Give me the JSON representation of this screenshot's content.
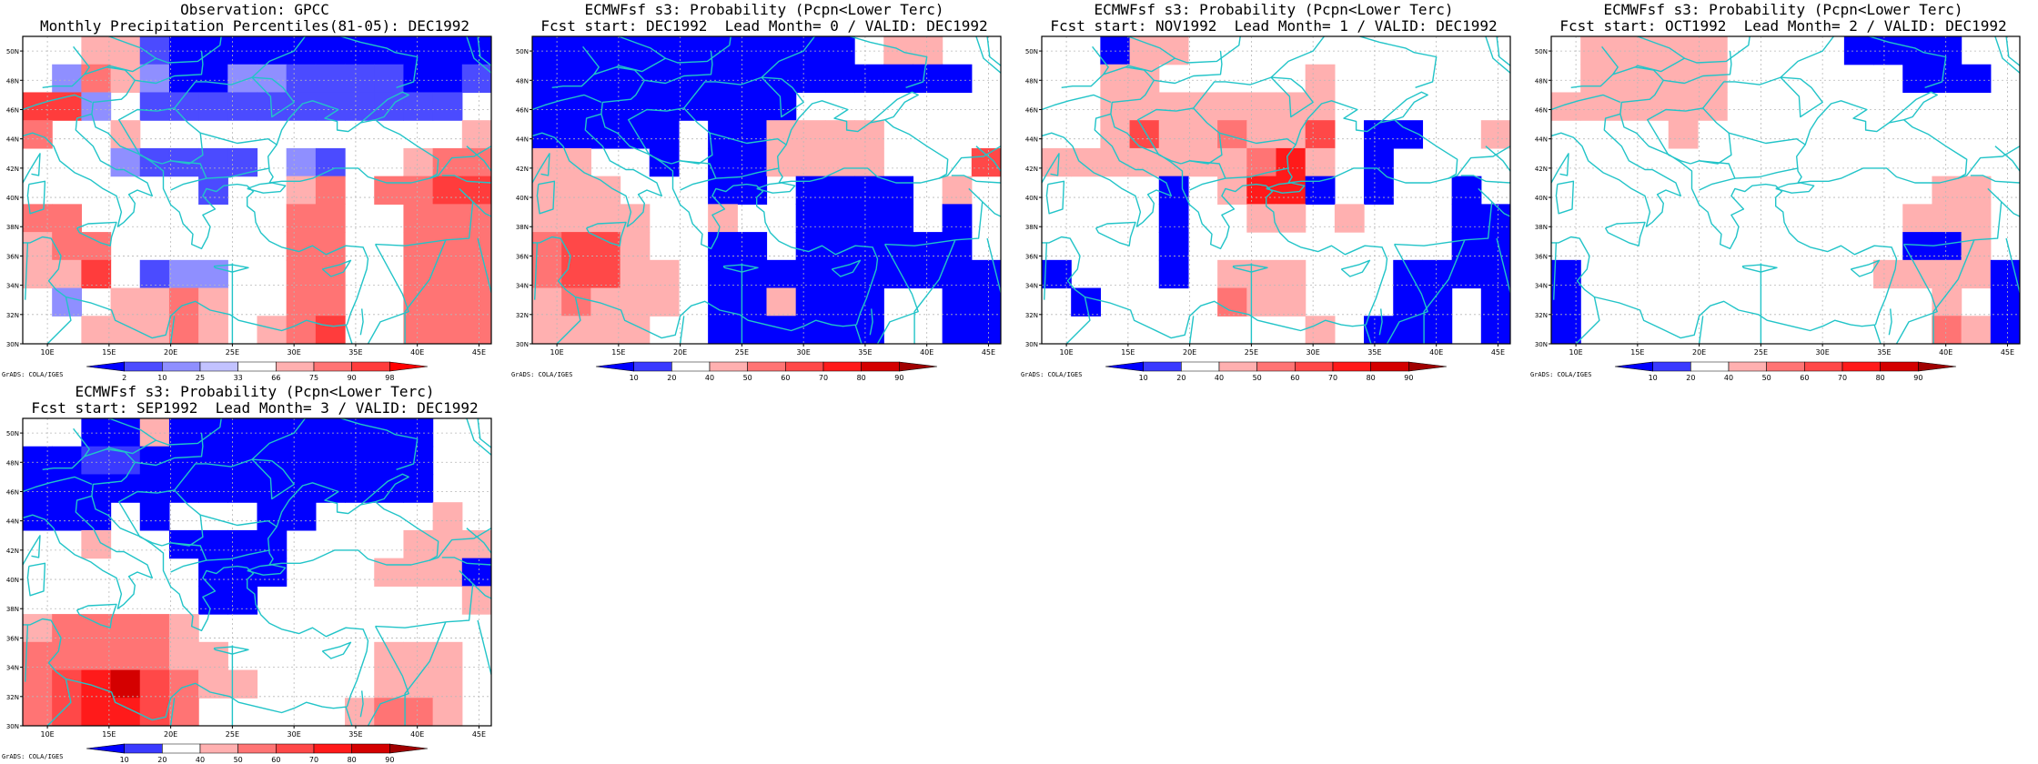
{
  "page": {
    "background": "#ffffff"
  },
  "colors": {
    "coast": "#22c4c8",
    "border": "#000000",
    "grid": "#b8b8b8",
    "obs_scale": [
      "#0000ff",
      "#4b4bff",
      "#8f8fff",
      "#c2c2ff",
      "#ffffff",
      "#ffb0b0",
      "#ff7474",
      "#ff3c3c",
      "#ff0000"
    ],
    "prob_scale": [
      "#0000ff",
      "#3a3aff",
      "#ffffff",
      "#ffb0b0",
      "#ff7474",
      "#ff4848",
      "#ff1a1a",
      "#d40000",
      "#a00000"
    ]
  },
  "map": {
    "lon_labels": [
      "10E",
      "15E",
      "20E",
      "25E",
      "30E",
      "35E",
      "40E",
      "45E"
    ],
    "lat_labels": [
      "50N",
      "48N",
      "46N",
      "44N",
      "42N",
      "40N",
      "38N",
      "36N",
      "34N",
      "32N",
      "30N"
    ]
  },
  "credit": "GrADS: COLA/IGES",
  "panels": [
    {
      "id": "obs",
      "title1": "Observation: GPCC",
      "title2": "Monthly Precipitation Percentiles(81-05): DEC1992",
      "scale": "obs",
      "colorbar_labels": [
        "2",
        "10",
        "25",
        "33",
        "66",
        "75",
        "90",
        "98"
      ],
      "grid": [
        [
          4,
          4,
          5,
          5,
          1,
          0,
          0,
          0,
          0,
          0,
          0,
          0,
          0,
          0,
          0,
          0
        ],
        [
          4,
          2,
          6,
          5,
          2,
          0,
          0,
          2,
          2,
          1,
          1,
          1,
          1,
          0,
          0,
          1
        ],
        [
          7,
          7,
          2,
          4,
          1,
          1,
          1,
          1,
          1,
          1,
          1,
          1,
          1,
          1,
          1,
          4
        ],
        [
          6,
          4,
          4,
          5,
          4,
          4,
          4,
          4,
          4,
          4,
          4,
          4,
          4,
          4,
          4,
          5
        ],
        [
          4,
          4,
          4,
          2,
          1,
          1,
          1,
          1,
          4,
          2,
          1,
          4,
          4,
          5,
          6,
          6
        ],
        [
          4,
          4,
          4,
          4,
          4,
          4,
          1,
          4,
          4,
          5,
          6,
          4,
          6,
          6,
          7,
          7
        ],
        [
          6,
          6,
          4,
          4,
          4,
          4,
          4,
          4,
          4,
          6,
          6,
          4,
          4,
          6,
          6,
          6
        ],
        [
          5,
          6,
          6,
          4,
          4,
          4,
          4,
          4,
          4,
          6,
          6,
          4,
          4,
          6,
          6,
          6
        ],
        [
          5,
          5,
          7,
          4,
          1,
          2,
          2,
          4,
          4,
          6,
          6,
          4,
          4,
          6,
          6,
          6
        ],
        [
          4,
          2,
          4,
          5,
          5,
          6,
          5,
          4,
          4,
          6,
          6,
          4,
          4,
          6,
          6,
          6
        ],
        [
          4,
          4,
          5,
          5,
          5,
          6,
          5,
          4,
          5,
          6,
          7,
          4,
          4,
          6,
          6,
          6
        ]
      ]
    },
    {
      "id": "fc0",
      "title1": "ECMWFsf s3: Probability (Pcpn<Lower Terc)",
      "title2": "Fcst start: DEC1992  Lead Month= 0 / VALID: DEC1992",
      "scale": "prob",
      "colorbar_labels": [
        "10",
        "20",
        "40",
        "50",
        "60",
        "70",
        "80",
        "90"
      ],
      "grid": [
        [
          0,
          0,
          0,
          0,
          0,
          0,
          0,
          0,
          0,
          0,
          0,
          2,
          3,
          3,
          2,
          2
        ],
        [
          0,
          0,
          0,
          0,
          0,
          0,
          0,
          0,
          0,
          0,
          0,
          0,
          0,
          0,
          0,
          2
        ],
        [
          0,
          0,
          0,
          0,
          0,
          0,
          0,
          0,
          0,
          2,
          2,
          2,
          2,
          2,
          2,
          2
        ],
        [
          0,
          0,
          0,
          0,
          0,
          2,
          0,
          0,
          3,
          3,
          3,
          3,
          2,
          2,
          2,
          2
        ],
        [
          3,
          3,
          2,
          2,
          0,
          2,
          0,
          0,
          3,
          3,
          3,
          3,
          2,
          2,
          2,
          5
        ],
        [
          3,
          3,
          3,
          2,
          2,
          2,
          0,
          0,
          2,
          0,
          0,
          0,
          0,
          2,
          3,
          2
        ],
        [
          3,
          3,
          3,
          3,
          2,
          2,
          3,
          2,
          2,
          0,
          0,
          0,
          0,
          2,
          0,
          2
        ],
        [
          4,
          5,
          5,
          3,
          2,
          2,
          0,
          0,
          2,
          0,
          0,
          0,
          0,
          0,
          0,
          2
        ],
        [
          4,
          5,
          5,
          3,
          3,
          2,
          0,
          0,
          0,
          0,
          0,
          0,
          0,
          0,
          0,
          0
        ],
        [
          3,
          4,
          3,
          3,
          3,
          2,
          0,
          0,
          3,
          0,
          0,
          0,
          2,
          2,
          0,
          0
        ],
        [
          3,
          3,
          3,
          3,
          2,
          2,
          0,
          0,
          0,
          0,
          0,
          0,
          2,
          2,
          0,
          0
        ]
      ]
    },
    {
      "id": "fc1",
      "title1": "ECMWFsf s3: Probability (Pcpn<Lower Terc)",
      "title2": "Fcst start: NOV1992  Lead Month= 1 / VALID: DEC1992",
      "scale": "prob",
      "colorbar_labels": [
        "10",
        "20",
        "40",
        "50",
        "60",
        "70",
        "80",
        "90"
      ],
      "grid": [
        [
          2,
          2,
          0,
          3,
          3,
          2,
          2,
          2,
          2,
          2,
          2,
          2,
          2,
          2,
          2,
          2
        ],
        [
          2,
          2,
          3,
          3,
          2,
          2,
          2,
          2,
          2,
          3,
          2,
          2,
          2,
          2,
          2,
          2
        ],
        [
          2,
          2,
          3,
          3,
          3,
          3,
          3,
          3,
          3,
          3,
          2,
          2,
          2,
          2,
          2,
          2
        ],
        [
          2,
          2,
          3,
          5,
          3,
          3,
          4,
          3,
          3,
          5,
          2,
          0,
          0,
          2,
          2,
          3
        ],
        [
          3,
          3,
          3,
          3,
          3,
          3,
          3,
          4,
          6,
          3,
          2,
          0,
          2,
          2,
          2,
          2
        ],
        [
          2,
          2,
          2,
          2,
          0,
          2,
          3,
          6,
          6,
          0,
          2,
          0,
          2,
          2,
          0,
          2
        ],
        [
          2,
          2,
          2,
          2,
          0,
          2,
          2,
          3,
          3,
          2,
          3,
          2,
          2,
          2,
          0,
          0
        ],
        [
          2,
          2,
          2,
          2,
          0,
          2,
          2,
          2,
          2,
          2,
          2,
          2,
          2,
          2,
          0,
          0
        ],
        [
          0,
          2,
          2,
          2,
          0,
          2,
          3,
          3,
          3,
          2,
          2,
          2,
          0,
          0,
          0,
          0
        ],
        [
          2,
          0,
          2,
          2,
          2,
          2,
          4,
          3,
          3,
          2,
          2,
          2,
          0,
          0,
          2,
          0
        ],
        [
          2,
          2,
          2,
          2,
          2,
          2,
          2,
          2,
          2,
          3,
          2,
          0,
          0,
          0,
          2,
          0
        ]
      ]
    },
    {
      "id": "fc2",
      "title1": "ECMWFsf s3: Probability (Pcpn<Lower Terc)",
      "title2": "Fcst start: OCT1992  Lead Month= 2 / VALID: DEC1992",
      "scale": "prob",
      "colorbar_labels": [
        "10",
        "20",
        "40",
        "50",
        "60",
        "70",
        "80",
        "90"
      ],
      "grid": [
        [
          2,
          3,
          3,
          3,
          3,
          3,
          2,
          2,
          2,
          2,
          0,
          0,
          0,
          0,
          2,
          2
        ],
        [
          2,
          3,
          3,
          3,
          3,
          3,
          2,
          2,
          2,
          2,
          2,
          2,
          0,
          0,
          0,
          2
        ],
        [
          3,
          3,
          3,
          3,
          3,
          3,
          2,
          2,
          2,
          2,
          2,
          2,
          2,
          2,
          2,
          2
        ],
        [
          2,
          2,
          2,
          2,
          3,
          2,
          2,
          2,
          2,
          2,
          2,
          2,
          2,
          2,
          2,
          2
        ],
        [
          2,
          2,
          2,
          2,
          2,
          2,
          2,
          2,
          2,
          2,
          2,
          2,
          2,
          2,
          2,
          2
        ],
        [
          2,
          2,
          2,
          2,
          2,
          2,
          2,
          2,
          2,
          2,
          2,
          2,
          2,
          3,
          3,
          2
        ],
        [
          2,
          2,
          2,
          2,
          2,
          2,
          2,
          2,
          2,
          2,
          2,
          2,
          3,
          3,
          3,
          2
        ],
        [
          2,
          2,
          2,
          2,
          2,
          2,
          2,
          2,
          2,
          2,
          2,
          2,
          0,
          0,
          3,
          2
        ],
        [
          0,
          2,
          2,
          2,
          2,
          2,
          2,
          2,
          2,
          2,
          2,
          3,
          3,
          3,
          3,
          0
        ],
        [
          0,
          2,
          2,
          2,
          2,
          2,
          2,
          2,
          2,
          2,
          2,
          2,
          2,
          3,
          2,
          0
        ],
        [
          0,
          2,
          2,
          2,
          2,
          2,
          2,
          2,
          2,
          2,
          2,
          2,
          2,
          4,
          3,
          0
        ]
      ]
    },
    {
      "id": "fc3",
      "title1": "ECMWFsf s3: Probability (Pcpn<Lower Terc)",
      "title2": "Fcst start: SEP1992  Lead Month= 3 / VALID: DEC1992",
      "scale": "prob",
      "colorbar_labels": [
        "10",
        "20",
        "40",
        "50",
        "60",
        "70",
        "80",
        "90"
      ],
      "grid": [
        [
          2,
          2,
          0,
          0,
          3,
          0,
          0,
          0,
          0,
          0,
          0,
          0,
          0,
          0,
          2,
          2
        ],
        [
          0,
          0,
          1,
          1,
          0,
          0,
          0,
          0,
          0,
          0,
          0,
          0,
          0,
          0,
          2,
          2
        ],
        [
          0,
          0,
          0,
          0,
          0,
          0,
          0,
          0,
          0,
          0,
          0,
          0,
          0,
          0,
          2,
          2
        ],
        [
          0,
          0,
          0,
          2,
          0,
          2,
          2,
          2,
          0,
          0,
          2,
          2,
          2,
          2,
          3,
          2
        ],
        [
          2,
          2,
          3,
          2,
          2,
          0,
          0,
          0,
          0,
          2,
          2,
          2,
          2,
          3,
          3,
          3
        ],
        [
          2,
          2,
          2,
          2,
          2,
          2,
          0,
          0,
          0,
          2,
          2,
          2,
          3,
          3,
          3,
          0
        ],
        [
          2,
          2,
          2,
          2,
          2,
          2,
          0,
          0,
          2,
          2,
          2,
          2,
          2,
          2,
          2,
          3
        ],
        [
          3,
          4,
          4,
          4,
          4,
          3,
          2,
          2,
          2,
          2,
          2,
          2,
          2,
          2,
          2,
          2
        ],
        [
          4,
          4,
          4,
          4,
          4,
          3,
          3,
          2,
          2,
          2,
          2,
          2,
          3,
          3,
          3,
          2
        ],
        [
          4,
          5,
          6,
          7,
          5,
          4,
          3,
          3,
          2,
          2,
          2,
          2,
          3,
          3,
          3,
          2
        ],
        [
          4,
          5,
          6,
          6,
          5,
          4,
          2,
          2,
          2,
          2,
          2,
          3,
          4,
          4,
          3,
          2
        ]
      ]
    }
  ]
}
